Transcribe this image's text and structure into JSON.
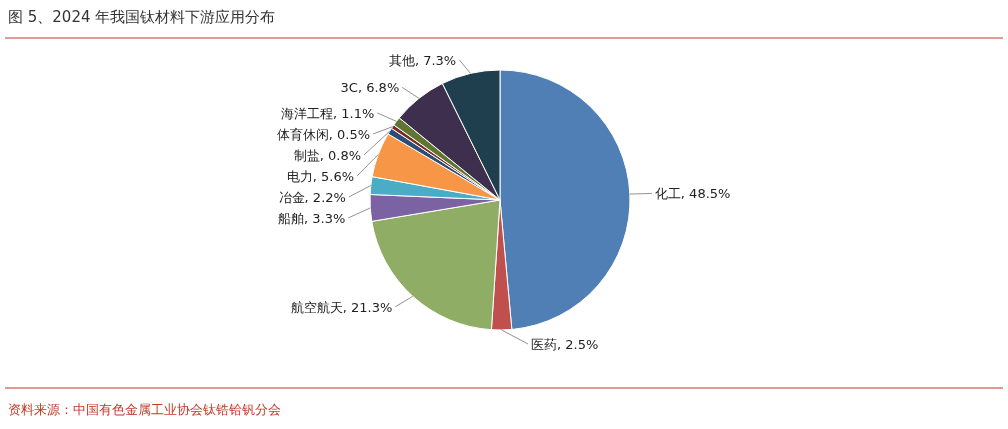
{
  "chart_data": {
    "type": "pie",
    "title": "图 5、2024 年我国钛材料下游应用分布",
    "categories": [
      "化工",
      "医药",
      "航空航天",
      "船舶",
      "冶金",
      "电力",
      "制盐",
      "体育休闲",
      "海洋工程",
      "3C",
      "其他"
    ],
    "values": [
      48.5,
      2.5,
      21.3,
      3.3,
      2.2,
      5.6,
      0.8,
      0.5,
      1.1,
      6.8,
      7.3
    ],
    "value_labels": [
      "48.5%",
      "2.5%",
      "21.3%",
      "3.3%",
      "2.2%",
      "5.6%",
      "0.8%",
      "0.5%",
      "1.1%",
      "6.8%",
      "7.3%"
    ],
    "colors": [
      "#4f7fb5",
      "#c0504d",
      "#8fad64",
      "#7b62a3",
      "#4bacc6",
      "#f79646",
      "#2c4d75",
      "#772c2a",
      "#5f7530",
      "#3f2f4f",
      "#1f3f4f"
    ],
    "annotations": [
      "资料来源：中国有色金属工业协会钛锆铪钒分会"
    ]
  }
}
